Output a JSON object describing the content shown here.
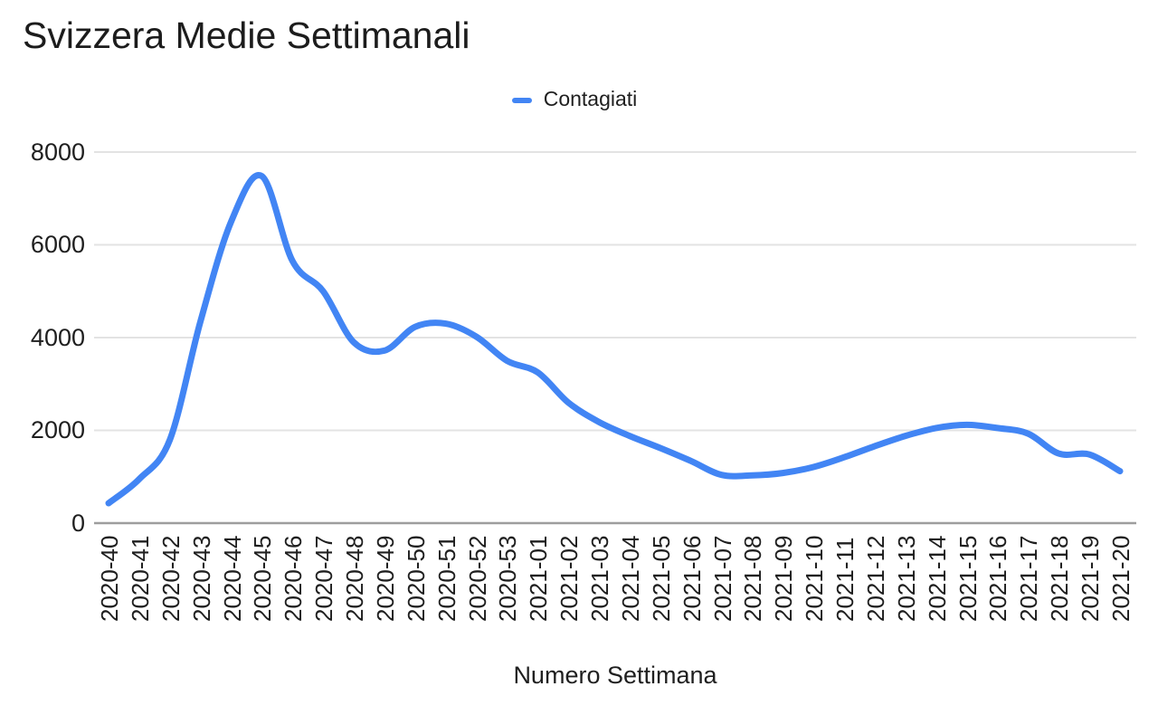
{
  "chart": {
    "title": "Svizzera Medie Settimanali",
    "legend_label": "Contagiati",
    "x_axis_title": "Numero Settimana"
  },
  "chart_data": {
    "type": "line",
    "title": "Svizzera Medie Settimanali",
    "xlabel": "Numero Settimana",
    "ylabel": "",
    "legend": [
      "Contagiati"
    ],
    "legend_position": "top",
    "grid": true,
    "smooth": true,
    "ylim": [
      0,
      8000
    ],
    "yticks": [
      0,
      2000,
      4000,
      6000,
      8000
    ],
    "categories": [
      "2020-40",
      "2020-41",
      "2020-42",
      "2020-43",
      "2020-44",
      "2020-45",
      "2020-46",
      "2020-47",
      "2020-48",
      "2020-49",
      "2020-50",
      "2020-51",
      "2020-52",
      "2020-53",
      "2021-01",
      "2021-02",
      "2021-03",
      "2021-04",
      "2021-05",
      "2021-06",
      "2021-07",
      "2021-08",
      "2021-09",
      "2021-10",
      "2021-11",
      "2021-12",
      "2021-13",
      "2021-14",
      "2021-15",
      "2021-16",
      "2021-17",
      "2021-18",
      "2021-19",
      "2021-20"
    ],
    "series": [
      {
        "name": "Contagiati",
        "color": "#4285f4",
        "values": [
          430,
          950,
          1800,
          4350,
          6500,
          7480,
          5650,
          5000,
          3900,
          3720,
          4230,
          4300,
          4020,
          3500,
          3250,
          2600,
          2180,
          1880,
          1620,
          1340,
          1040,
          1030,
          1080,
          1210,
          1420,
          1660,
          1880,
          2050,
          2120,
          2050,
          1930,
          1500,
          1480,
          1120
        ]
      }
    ]
  },
  "colors": {
    "line": "#4285f4",
    "gridline": "#e3e3e3",
    "baseline": "#9e9e9e",
    "text": "#1f1f1f",
    "background": "#ffffff"
  }
}
